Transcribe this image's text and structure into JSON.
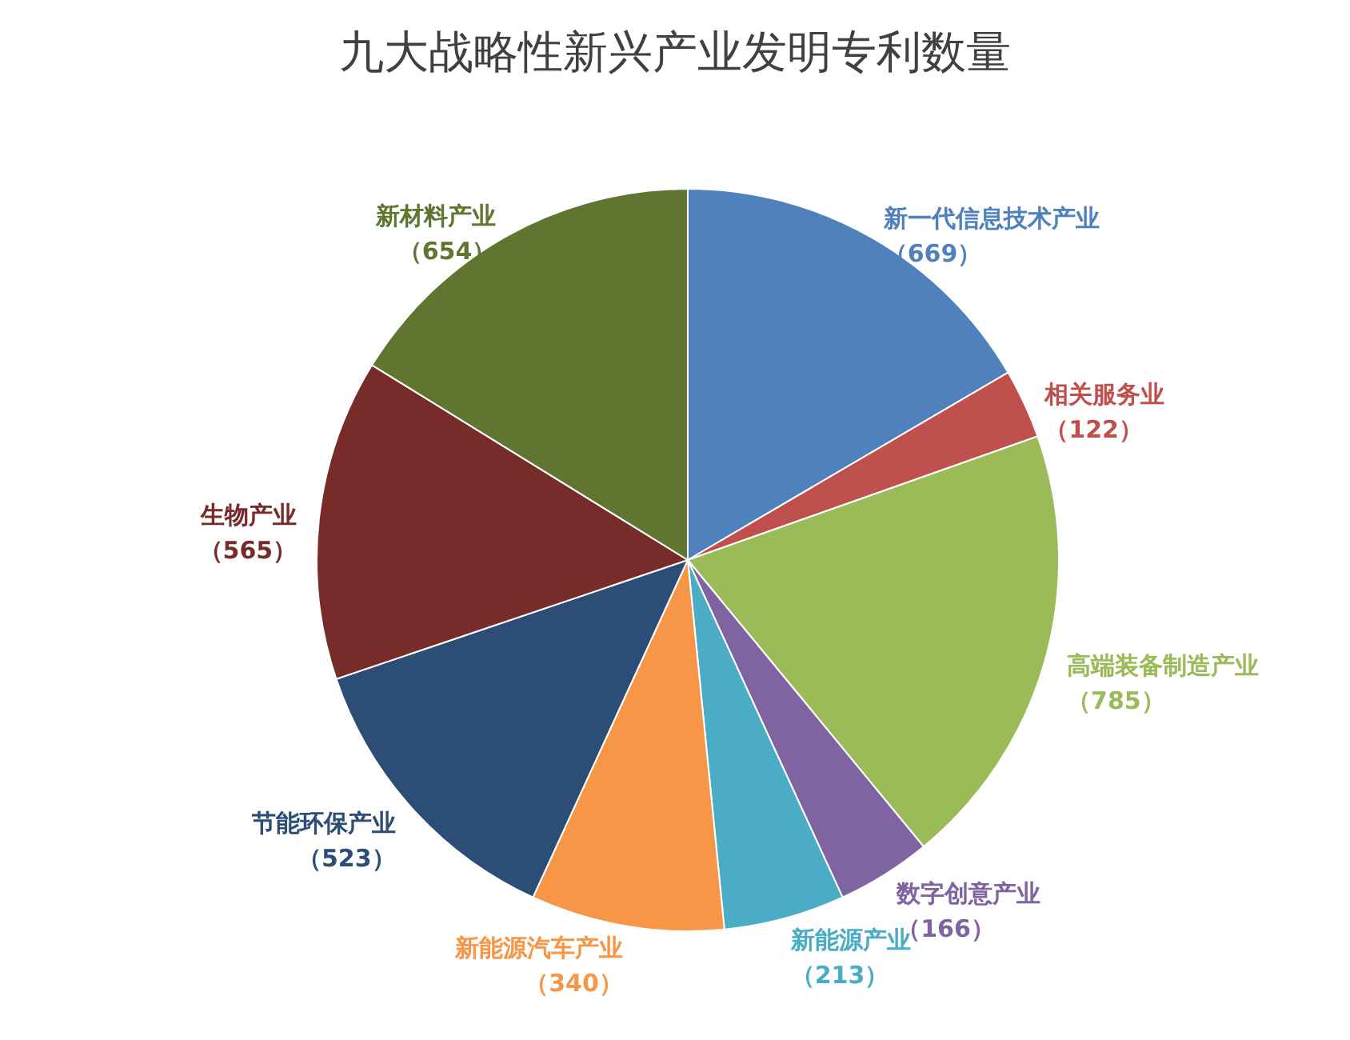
{
  "chart_data": {
    "type": "pie",
    "title": "九大战略性新兴产业发明专利数量",
    "categories": [
      "新一代信息技术产业",
      "相关服务业",
      "高端装备制造产业",
      "数字创意产业",
      "新能源产业",
      "新能源汽车产业",
      "节能环保产业",
      "生物产业",
      "新材料产业"
    ],
    "values": [
      669,
      122,
      785,
      166,
      213,
      340,
      523,
      565,
      654
    ],
    "colors": [
      "#4f81bd",
      "#c0504d",
      "#9bbb59",
      "#8064a2",
      "#4bacc6",
      "#f79646",
      "#2c4d75",
      "#772c2a",
      "#5f7530"
    ],
    "value_labels": [
      "（669）",
      "（122）",
      "（785）",
      "（166）",
      "（213）",
      "（340）",
      "（523）",
      "（565）",
      "（654）"
    ],
    "legend": false
  }
}
